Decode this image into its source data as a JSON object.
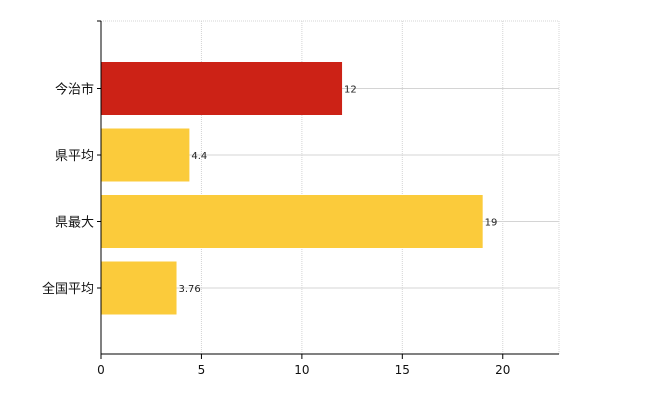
{
  "chart_data": {
    "type": "bar",
    "orientation": "horizontal",
    "categories": [
      "今治市",
      "県平均",
      "県最大",
      "全国平均"
    ],
    "values": [
      12,
      4.4,
      19,
      3.76
    ],
    "value_labels": [
      "12",
      "4.4",
      "19",
      "3.76"
    ],
    "xlim": [
      0,
      22.8
    ],
    "xticks": [
      0,
      5,
      10,
      15,
      20
    ],
    "xtick_labels": [
      "0",
      "5",
      "10",
      "15",
      "20"
    ],
    "grid": true,
    "legend": "none",
    "title": "",
    "xlabel": "",
    "ylabel": ""
  },
  "colors": {
    "highlight": "#CC2216",
    "default": "#FBCB3B",
    "grid": "#D4D4D4",
    "axis": "#000000"
  },
  "bar_colors": [
    "highlight",
    "default",
    "default",
    "default"
  ]
}
